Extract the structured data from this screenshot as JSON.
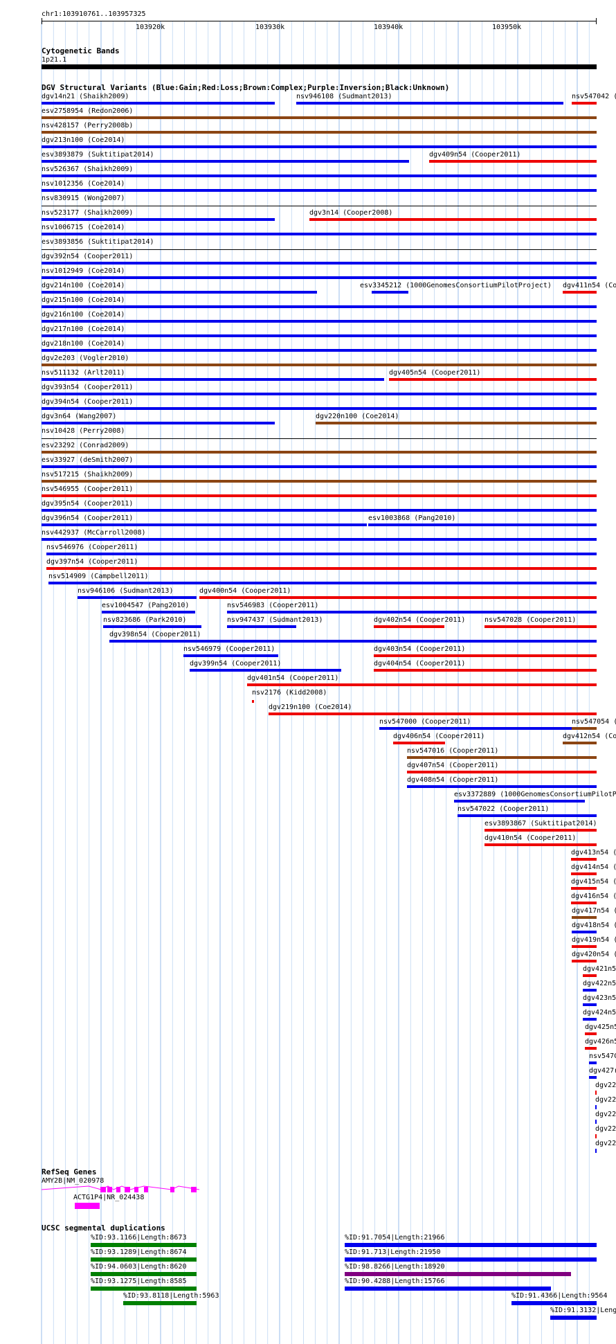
{
  "location": "chr1:103910761..103957325",
  "ruler_ticks": [
    "103920k",
    "103930k",
    "103940k",
    "103950k"
  ],
  "colors": {
    "gain": "#0000ee",
    "loss": "#ee0000",
    "complex": "#8b4513",
    "inversion": "#800080",
    "unknown": "#000000",
    "refseq": "#ff00ff",
    "segdup_green": "#008000",
    "segdup_blue": "#0000ee",
    "segdup_purple": "#800080",
    "grid": "#aac8ee"
  },
  "tracks": {
    "cytoband": {
      "title": "Cytogenetic Bands",
      "band_label": "1p21.1"
    },
    "dgv": {
      "title": "DGV Structural Variants (Blue:Gain;Red:Loss;Brown:Complex;Purple:Inversion;Black:Unknown)",
      "features": [
        {
          "label": "dgv14n21 (Shaikh2009)",
          "color": "blue"
        },
        {
          "label": "nsv946108 (Sudmant2013)",
          "color": "blue"
        },
        {
          "label": "nsv547042 (",
          "color": "red"
        },
        {
          "label": "esv2758954 (Redon2006)",
          "color": "brown"
        },
        {
          "label": "nsv428157 (Perry2008b)",
          "color": "brown"
        },
        {
          "label": "dgv213n100 (Coe2014)",
          "color": "blue"
        },
        {
          "label": "esv3893879 (Suktitipat2014)",
          "color": "blue"
        },
        {
          "label": "dgv409n54 (Cooper2011)",
          "color": "red"
        },
        {
          "label": "nsv526367 (Shaikh2009)",
          "color": "blue"
        },
        {
          "label": "nsv1012356 (Coe2014)",
          "color": "blue"
        },
        {
          "label": "nsv830915 (Wong2007)",
          "color": "black"
        },
        {
          "label": "nsv523177 (Shaikh2009)",
          "color": "blue"
        },
        {
          "label": "dgv3n14 (Cooper2008)",
          "color": "red"
        },
        {
          "label": "nsv1006715 (Coe2014)",
          "color": "blue"
        },
        {
          "label": "esv3893856 (Suktitipat2014)",
          "color": "black"
        },
        {
          "label": "dgv392n54 (Cooper2011)",
          "color": "blue"
        },
        {
          "label": "nsv1012949 (Coe2014)",
          "color": "blue"
        },
        {
          "label": "dgv214n100 (Coe2014)",
          "color": "blue"
        },
        {
          "label": "esv3345212 (1000GenomesConsortiumPilotProject)",
          "color": "blue"
        },
        {
          "label": "dgv411n54 (Co",
          "color": "red"
        },
        {
          "label": "dgv215n100 (Coe2014)",
          "color": "blue"
        },
        {
          "label": "dgv216n100 (Coe2014)",
          "color": "blue"
        },
        {
          "label": "dgv217n100 (Coe2014)",
          "color": "blue"
        },
        {
          "label": "dgv218n100 (Coe2014)",
          "color": "blue"
        },
        {
          "label": "dgv2e203 (Vogler2010)",
          "color": "brown"
        },
        {
          "label": "nsv511132 (Arlt2011)",
          "color": "blue"
        },
        {
          "label": "dgv405n54 (Cooper2011)",
          "color": "red"
        },
        {
          "label": "dgv393n54 (Cooper2011)",
          "color": "blue"
        },
        {
          "label": "dgv394n54 (Cooper2011)",
          "color": "blue"
        },
        {
          "label": "dgv3n64 (Wang2007)",
          "color": "blue"
        },
        {
          "label": "dgv220n100 (Coe2014)",
          "color": "brown"
        },
        {
          "label": "nsv10428 (Perry2008)",
          "color": "black"
        },
        {
          "label": "esv23292 (Conrad2009)",
          "color": "brown"
        },
        {
          "label": "esv33927 (deSmith2007)",
          "color": "blue"
        },
        {
          "label": "nsv517215 (Shaikh2009)",
          "color": "brown"
        },
        {
          "label": "nsv546955 (Cooper2011)",
          "color": "red"
        },
        {
          "label": "dgv395n54 (Cooper2011)",
          "color": "blue"
        },
        {
          "label": "dgv396n54 (Cooper2011)",
          "color": "blue"
        },
        {
          "label": "esv1003868 (Pang2010)",
          "color": "blue"
        },
        {
          "label": "nsv442937 (McCarroll2008)",
          "color": "blue"
        },
        {
          "label": "nsv546976 (Cooper2011)",
          "color": "blue"
        },
        {
          "label": "dgv397n54 (Cooper2011)",
          "color": "red"
        },
        {
          "label": "nsv514909 (Campbell2011)",
          "color": "blue"
        },
        {
          "label": "nsv946106 (Sudmant2013)",
          "color": "blue"
        },
        {
          "label": "dgv400n54 (Cooper2011)",
          "color": "red"
        },
        {
          "label": "esv1004547 (Pang2010)",
          "color": "blue"
        },
        {
          "label": "nsv546983 (Cooper2011)",
          "color": "blue"
        },
        {
          "label": "nsv823686 (Park2010)",
          "color": "blue"
        },
        {
          "label": "nsv947437 (Sudmant2013)",
          "color": "blue"
        },
        {
          "label": "dgv402n54 (Cooper2011)",
          "color": "red"
        },
        {
          "label": "nsv547028 (Cooper2011)",
          "color": "red"
        },
        {
          "label": "dgv398n54 (Cooper2011)",
          "color": "blue"
        },
        {
          "label": "nsv546979 (Cooper2011)",
          "color": "blue"
        },
        {
          "label": "dgv403n54 (Cooper2011)",
          "color": "red"
        },
        {
          "label": "dgv399n54 (Cooper2011)",
          "color": "blue"
        },
        {
          "label": "dgv404n54 (Cooper2011)",
          "color": "red"
        },
        {
          "label": "dgv401n54 (Cooper2011)",
          "color": "red"
        },
        {
          "label": "nsv2176 (Kidd2008)",
          "color": "red"
        },
        {
          "label": "dgv219n100 (Coe2014)",
          "color": "red"
        },
        {
          "label": "nsv547000 (Cooper2011)",
          "color": "blue"
        },
        {
          "label": "nsv547054 (",
          "color": "brown"
        },
        {
          "label": "dgv406n54 (Cooper2011)",
          "color": "red"
        },
        {
          "label": "dgv412n54 (Co",
          "color": "brown"
        },
        {
          "label": "nsv547016 (Cooper2011)",
          "color": "brown"
        },
        {
          "label": "dgv407n54 (Cooper2011)",
          "color": "red"
        },
        {
          "label": "dgv408n54 (Cooper2011)",
          "color": "blue"
        },
        {
          "label": "esv3372889 (1000GenomesConsortiumPilotP",
          "color": "blue"
        },
        {
          "label": "nsv547022 (Cooper2011)",
          "color": "blue"
        },
        {
          "label": "esv3893867 (Suktitipat2014)",
          "color": "red"
        },
        {
          "label": "dgv410n54 (Cooper2011)",
          "color": "red"
        },
        {
          "label": "dgv413n54 (",
          "color": "red"
        },
        {
          "label": "dgv414n54 (",
          "color": "red"
        },
        {
          "label": "dgv415n54 (",
          "color": "red"
        },
        {
          "label": "dgv416n54 (",
          "color": "red"
        },
        {
          "label": "dgv417n54 (",
          "color": "brown"
        },
        {
          "label": "dgv418n54 (",
          "color": "blue"
        },
        {
          "label": "dgv419n54 (",
          "color": "red"
        },
        {
          "label": "dgv420n54 (",
          "color": "red"
        },
        {
          "label": "dgv421n5",
          "color": "red"
        },
        {
          "label": "dgv422n5",
          "color": "blue"
        },
        {
          "label": "dgv423n5",
          "color": "blue"
        },
        {
          "label": "dgv424n5",
          "color": "blue"
        },
        {
          "label": "dgv425n5",
          "color": "red"
        },
        {
          "label": "dgv426n5",
          "color": "red"
        },
        {
          "label": "nsv547C",
          "color": "blue"
        },
        {
          "label": "dgv427r",
          "color": "blue"
        },
        {
          "label": "dgv22",
          "color": "red"
        },
        {
          "label": "dgv22",
          "color": "blue"
        },
        {
          "label": "dgv22",
          "color": "blue"
        },
        {
          "label": "dgv22",
          "color": "red"
        },
        {
          "label": "dgv22",
          "color": "blue"
        }
      ]
    },
    "refseq": {
      "title": "RefSeq Genes",
      "genes": [
        {
          "label": "AMY2B|NM_020978"
        },
        {
          "label": "ACTG1P4|NR_024438"
        }
      ]
    },
    "segdup": {
      "title": "UCSC segmental duplications",
      "features": [
        {
          "label": "%ID:93.1166|Length:8673",
          "color": "green"
        },
        {
          "label": "%ID:93.1289|Length:8674",
          "color": "green"
        },
        {
          "label": "%ID:94.0603|Length:8620",
          "color": "green"
        },
        {
          "label": "%ID:93.1275|Length:8585",
          "color": "green"
        },
        {
          "label": "%ID:93.8118|Length:5963",
          "color": "green"
        },
        {
          "label": "%ID:91.7054|Length:21966",
          "color": "blue"
        },
        {
          "label": "%ID:91.713|Length:21950",
          "color": "blue"
        },
        {
          "label": "%ID:98.8266|Length:18920",
          "color": "purple"
        },
        {
          "label": "%ID:90.4288|Length:15766",
          "color": "blue"
        },
        {
          "label": "%ID:91.4366|Length:9564",
          "color": "blue"
        },
        {
          "label": "%ID:91.3132|Leng",
          "color": "blue"
        }
      ]
    }
  }
}
